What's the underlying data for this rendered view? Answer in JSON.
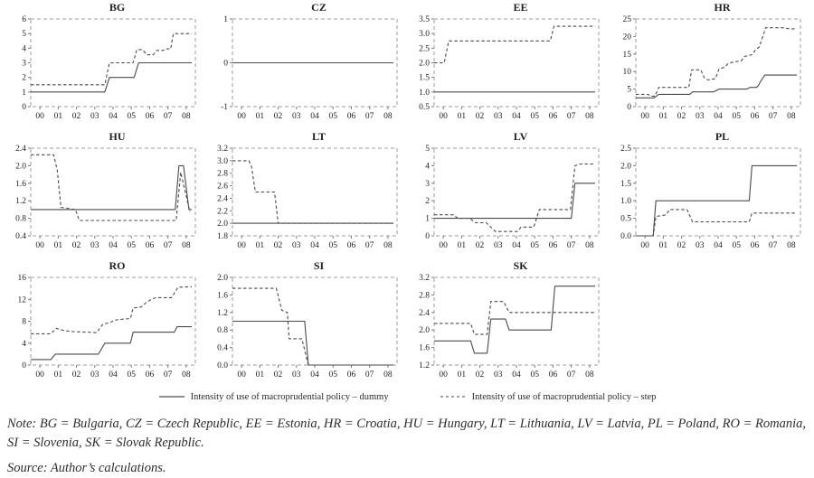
{
  "figure": {
    "legend": [
      {
        "style": "solid",
        "label": "Intensity of use of macroprudential policy – dummy"
      },
      {
        "style": "dashed",
        "label": "Intensity of use of macroprudential policy – step"
      }
    ],
    "note": "Note: BG = Bulgaria, CZ = Czech Republic, EE = Estonia, HR = Croatia, HU = Hungary, LT = Lithuania, LV = Latvia, PL = Poland, RO = Romania, SI = Slovenia, SK = Slovak Republic.",
    "source": "Source: Author’s calculations."
  },
  "axis": {
    "x_ticks": [
      "00",
      "01",
      "02",
      "03",
      "04",
      "05",
      "06",
      "07",
      "08"
    ],
    "xlim": [
      -0.5,
      8.5
    ]
  },
  "colors": {
    "line": "#4a4a4a",
    "frame": "#9e9e9e",
    "tick": "#7a7a7a",
    "label": "#1f1f1f"
  },
  "chart_data": [
    {
      "type": "line",
      "title": "BG",
      "ylim": [
        0,
        6
      ],
      "yticks": [
        "0",
        "1",
        "2",
        "3",
        "4",
        "5",
        "6"
      ],
      "series": [
        {
          "name": "dummy",
          "style": "solid",
          "points": [
            [
              -0.5,
              1
            ],
            [
              3.55,
              1
            ],
            [
              3.8,
              2
            ],
            [
              5.15,
              2
            ],
            [
              5.4,
              3
            ],
            [
              8.3,
              3
            ]
          ]
        },
        {
          "name": "step",
          "style": "dashed",
          "points": [
            [
              -0.5,
              1.5
            ],
            [
              3.55,
              1.5
            ],
            [
              3.8,
              3
            ],
            [
              5.1,
              3
            ],
            [
              5.3,
              3.9
            ],
            [
              5.6,
              3.9
            ],
            [
              5.85,
              3.55
            ],
            [
              6.2,
              3.55
            ],
            [
              6.4,
              3.85
            ],
            [
              6.75,
              3.85
            ],
            [
              6.85,
              3.95
            ],
            [
              7.15,
              3.95
            ],
            [
              7.3,
              5
            ],
            [
              8.3,
              5
            ]
          ]
        }
      ]
    },
    {
      "type": "line",
      "title": "CZ",
      "ylim": [
        -1,
        1
      ],
      "yticks": [
        "-1",
        "0",
        "1"
      ],
      "series": [
        {
          "name": "dummy",
          "style": "solid",
          "points": [
            [
              -0.5,
              0
            ],
            [
              8.3,
              0
            ]
          ]
        },
        {
          "name": "step",
          "style": "dashed",
          "points": [
            [
              -0.5,
              0
            ],
            [
              8.3,
              0
            ]
          ]
        }
      ]
    },
    {
      "type": "line",
      "title": "EE",
      "ylim": [
        0.5,
        3.5
      ],
      "yticks": [
        "0.5",
        "1.0",
        "1.5",
        "2.0",
        "2.5",
        "3.0",
        "3.5"
      ],
      "series": [
        {
          "name": "dummy",
          "style": "solid",
          "points": [
            [
              -0.5,
              1
            ],
            [
              8.3,
              1
            ]
          ]
        },
        {
          "name": "step",
          "style": "dashed",
          "points": [
            [
              -0.5,
              2
            ],
            [
              0.05,
              2
            ],
            [
              0.3,
              2.75
            ],
            [
              5.85,
              2.75
            ],
            [
              6.05,
              3.25
            ],
            [
              8.3,
              3.25
            ]
          ]
        }
      ]
    },
    {
      "type": "line",
      "title": "HR",
      "ylim": [
        0,
        25
      ],
      "yticks": [
        "0",
        "5",
        "10",
        "15",
        "20",
        "25"
      ],
      "series": [
        {
          "name": "dummy",
          "style": "solid",
          "points": [
            [
              -0.5,
              2.5
            ],
            [
              0.5,
              2.5
            ],
            [
              0.75,
              3.5
            ],
            [
              2.45,
              3.5
            ],
            [
              2.6,
              4.2
            ],
            [
              3.75,
              4.2
            ],
            [
              4.05,
              5
            ],
            [
              5.55,
              5
            ],
            [
              5.75,
              5.5
            ],
            [
              6.1,
              5.5
            ],
            [
              6.2,
              6
            ],
            [
              6.3,
              7
            ],
            [
              6.55,
              9
            ],
            [
              8.3,
              9
            ]
          ]
        },
        {
          "name": "step",
          "style": "dashed",
          "points": [
            [
              -0.5,
              3.5
            ],
            [
              0.15,
              3.5
            ],
            [
              0.35,
              3.0
            ],
            [
              0.55,
              3.0
            ],
            [
              0.75,
              5.5
            ],
            [
              2.4,
              5.5
            ],
            [
              2.55,
              10.5
            ],
            [
              3.05,
              10.5
            ],
            [
              3.25,
              8.2
            ],
            [
              3.45,
              7.6
            ],
            [
              3.85,
              8.0
            ],
            [
              4.05,
              10.8
            ],
            [
              4.35,
              11.2
            ],
            [
              4.55,
              12.3
            ],
            [
              4.9,
              12.8
            ],
            [
              5.25,
              13.0
            ],
            [
              5.45,
              14.3
            ],
            [
              5.85,
              14.8
            ],
            [
              6.05,
              16.3
            ],
            [
              6.25,
              17.0
            ],
            [
              6.6,
              22.5
            ],
            [
              7.5,
              22.5
            ],
            [
              7.9,
              22.2
            ],
            [
              8.3,
              22.2
            ]
          ]
        }
      ]
    },
    {
      "type": "line",
      "title": "HU",
      "ylim": [
        0.4,
        2.4
      ],
      "yticks": [
        "0.4",
        "0.8",
        "1.2",
        "1.6",
        "2.0",
        "2.4"
      ],
      "series": [
        {
          "name": "dummy",
          "style": "solid",
          "points": [
            [
              -0.5,
              1
            ],
            [
              7.4,
              1
            ],
            [
              7.6,
              2
            ],
            [
              7.85,
              2
            ],
            [
              8.15,
              1
            ],
            [
              8.3,
              1
            ]
          ]
        },
        {
          "name": "step",
          "style": "dashed",
          "points": [
            [
              -0.5,
              2.25
            ],
            [
              0.75,
              2.25
            ],
            [
              0.95,
              1.9
            ],
            [
              1.15,
              1.05
            ],
            [
              1.95,
              1.0
            ],
            [
              2.15,
              0.75
            ],
            [
              7.45,
              0.75
            ],
            [
              7.7,
              1.85
            ],
            [
              8.2,
              0.95
            ]
          ]
        }
      ]
    },
    {
      "type": "line",
      "title": "LT",
      "ylim": [
        1.8,
        3.2
      ],
      "yticks": [
        "1.8",
        "2.0",
        "2.2",
        "2.4",
        "2.6",
        "2.8",
        "3.0",
        "3.2"
      ],
      "series": [
        {
          "name": "dummy",
          "style": "solid",
          "points": [
            [
              -0.5,
              2
            ],
            [
              8.3,
              2
            ]
          ]
        },
        {
          "name": "step",
          "style": "dashed",
          "points": [
            [
              -0.5,
              3.0
            ],
            [
              0.4,
              3.0
            ],
            [
              0.55,
              2.9
            ],
            [
              0.75,
              2.5
            ],
            [
              1.8,
              2.5
            ],
            [
              2.0,
              2.0
            ],
            [
              8.3,
              2.0
            ]
          ]
        }
      ]
    },
    {
      "type": "line",
      "title": "LV",
      "ylim": [
        0,
        5
      ],
      "yticks": [
        "0",
        "1",
        "2",
        "3",
        "4",
        "5"
      ],
      "series": [
        {
          "name": "dummy",
          "style": "solid",
          "points": [
            [
              -0.5,
              1
            ],
            [
              7.0,
              1
            ],
            [
              7.2,
              3
            ],
            [
              8.3,
              3
            ]
          ]
        },
        {
          "name": "step",
          "style": "dashed",
          "points": [
            [
              -0.5,
              1.2
            ],
            [
              0.55,
              1.2
            ],
            [
              0.8,
              1.0
            ],
            [
              1.45,
              1.0
            ],
            [
              1.75,
              0.75
            ],
            [
              2.35,
              0.75
            ],
            [
              2.85,
              0.25
            ],
            [
              4.05,
              0.25
            ],
            [
              4.25,
              0.5
            ],
            [
              4.95,
              0.5
            ],
            [
              5.25,
              1.5
            ],
            [
              6.95,
              1.5
            ],
            [
              7.2,
              4.0
            ],
            [
              7.45,
              4.1
            ],
            [
              8.3,
              4.1
            ]
          ]
        }
      ]
    },
    {
      "type": "line",
      "title": "PL",
      "ylim": [
        0,
        2.5
      ],
      "yticks": [
        "0.0",
        "0.5",
        "1.0",
        "1.5",
        "2.0",
        "2.5"
      ],
      "series": [
        {
          "name": "dummy",
          "style": "solid",
          "points": [
            [
              -0.5,
              0
            ],
            [
              0.45,
              0
            ],
            [
              0.6,
              1
            ],
            [
              5.7,
              1
            ],
            [
              5.85,
              2
            ],
            [
              8.3,
              2
            ]
          ]
        },
        {
          "name": "step",
          "style": "dashed",
          "points": [
            [
              -0.5,
              0
            ],
            [
              0.45,
              0
            ],
            [
              0.6,
              0.55
            ],
            [
              1.15,
              0.6
            ],
            [
              1.35,
              0.75
            ],
            [
              2.3,
              0.75
            ],
            [
              2.6,
              0.4
            ],
            [
              5.7,
              0.4
            ],
            [
              5.85,
              0.65
            ],
            [
              8.3,
              0.65
            ]
          ]
        }
      ]
    },
    {
      "type": "line",
      "title": "RO",
      "ylim": [
        0,
        16
      ],
      "yticks": [
        "0",
        "4",
        "8",
        "12",
        "16"
      ],
      "series": [
        {
          "name": "dummy",
          "style": "solid",
          "points": [
            [
              -0.5,
              1
            ],
            [
              0.6,
              1
            ],
            [
              0.85,
              2
            ],
            [
              3.2,
              2
            ],
            [
              3.55,
              4
            ],
            [
              4.95,
              4
            ],
            [
              5.1,
              6
            ],
            [
              7.35,
              6
            ],
            [
              7.5,
              7
            ],
            [
              8.3,
              7
            ]
          ]
        },
        {
          "name": "step",
          "style": "dashed",
          "points": [
            [
              -0.5,
              5.7
            ],
            [
              0.6,
              5.7
            ],
            [
              0.9,
              6.7
            ],
            [
              1.3,
              6.3
            ],
            [
              1.8,
              6.1
            ],
            [
              2.6,
              6.0
            ],
            [
              3.1,
              5.9
            ],
            [
              3.45,
              7.5
            ],
            [
              3.8,
              7.7
            ],
            [
              4.1,
              8.2
            ],
            [
              4.6,
              8.4
            ],
            [
              4.95,
              8.5
            ],
            [
              5.1,
              10.4
            ],
            [
              5.55,
              10.6
            ],
            [
              5.8,
              11.4
            ],
            [
              6.1,
              12.0
            ],
            [
              6.35,
              12.3
            ],
            [
              7.2,
              12.3
            ],
            [
              7.55,
              14.2
            ],
            [
              8.3,
              14.3
            ]
          ]
        }
      ]
    },
    {
      "type": "line",
      "title": "SI",
      "ylim": [
        0,
        2
      ],
      "yticks": [
        "0.0",
        "0.4",
        "0.8",
        "1.2",
        "1.6",
        "2.0"
      ],
      "series": [
        {
          "name": "dummy",
          "style": "solid",
          "points": [
            [
              -0.5,
              1
            ],
            [
              3.45,
              1
            ],
            [
              3.65,
              0
            ],
            [
              8.3,
              0
            ]
          ]
        },
        {
          "name": "step",
          "style": "dashed",
          "points": [
            [
              -0.5,
              1.75
            ],
            [
              1.9,
              1.75
            ],
            [
              2.2,
              1.25
            ],
            [
              2.5,
              1.2
            ],
            [
              2.6,
              0.6
            ],
            [
              3.3,
              0.6
            ],
            [
              3.65,
              0
            ],
            [
              8.3,
              0
            ]
          ]
        }
      ]
    },
    {
      "type": "line",
      "title": "SK",
      "ylim": [
        1.2,
        3.2
      ],
      "yticks": [
        "1.2",
        "1.6",
        "2.0",
        "2.4",
        "2.8",
        "3.2"
      ],
      "series": [
        {
          "name": "dummy",
          "style": "solid",
          "points": [
            [
              -0.5,
              1.75
            ],
            [
              1.5,
              1.75
            ],
            [
              1.7,
              1.47
            ],
            [
              2.4,
              1.47
            ],
            [
              2.6,
              2.25
            ],
            [
              3.4,
              2.25
            ],
            [
              3.6,
              2.0
            ],
            [
              5.9,
              2.0
            ],
            [
              6.1,
              3.0
            ],
            [
              8.3,
              3.0
            ]
          ]
        },
        {
          "name": "step",
          "style": "dashed",
          "points": [
            [
              -0.5,
              2.15
            ],
            [
              1.5,
              2.15
            ],
            [
              1.7,
              1.9
            ],
            [
              2.4,
              1.9
            ],
            [
              2.6,
              2.65
            ],
            [
              3.3,
              2.65
            ],
            [
              3.6,
              2.4
            ],
            [
              8.3,
              2.4
            ]
          ]
        }
      ]
    }
  ]
}
